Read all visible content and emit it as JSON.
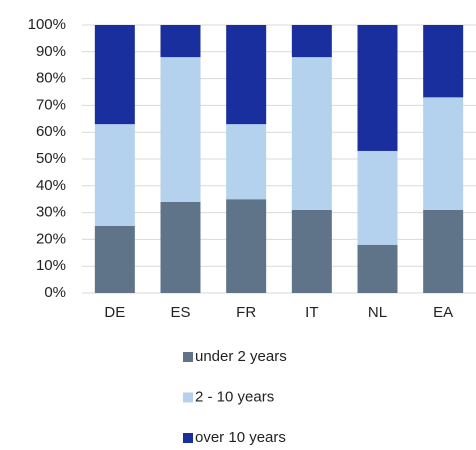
{
  "chart_data": {
    "type": "stacked_bar",
    "categories": [
      "DE",
      "ES",
      "FR",
      "IT",
      "NL",
      "EA"
    ],
    "series": [
      {
        "name": "under 2 years",
        "color": "#5f7489",
        "values": [
          25,
          34,
          35,
          31,
          18,
          31
        ]
      },
      {
        "name": "2 - 10 years",
        "color": "#b4d1ee",
        "values": [
          38,
          54,
          28,
          57,
          35,
          42
        ]
      },
      {
        "name": "over 10 years",
        "color": "#1a2f9e",
        "values": [
          37,
          12,
          37,
          12,
          47,
          27
        ]
      }
    ],
    "ylim": [
      0,
      100
    ],
    "yticks": [
      {
        "value": 0,
        "label": "0%"
      },
      {
        "value": 10,
        "label": "10%"
      },
      {
        "value": 20,
        "label": "20%"
      },
      {
        "value": 30,
        "label": "30%"
      },
      {
        "value": 40,
        "label": "40%"
      },
      {
        "value": 50,
        "label": "50%"
      },
      {
        "value": 60,
        "label": "60%"
      },
      {
        "value": 70,
        "label": "70%"
      },
      {
        "value": 80,
        "label": "80%"
      },
      {
        "value": 90,
        "label": "90%"
      },
      {
        "value": 100,
        "label": "100%"
      }
    ],
    "grid": true
  }
}
